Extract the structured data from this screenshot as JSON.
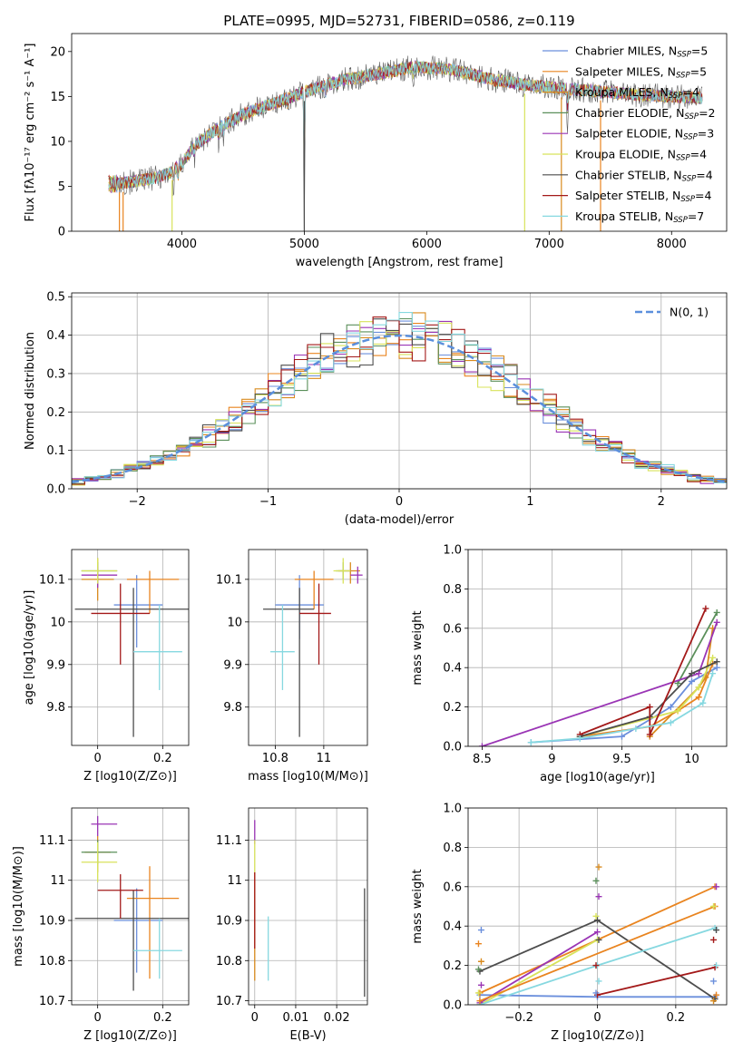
{
  "figure_title": "PLATE=0995, MJD=52731, FIBERID=0586, z=0.119",
  "colors": {
    "Chabrier MILES": "#6b8fdc",
    "Salpeter MILES": "#e9841f",
    "Kroupa MILES": "#d98b1e",
    "Chabrier ELODIE": "#5a8f5a",
    "Salpeter ELODIE": "#9a35b5",
    "Kroupa ELODIE": "#d8e35b",
    "Chabrier STELIB": "#4d4d4d",
    "Salpeter STELIB": "#a31919",
    "Kroupa STELIB": "#86d8e0",
    "gauss": "#5b8fdc"
  },
  "chart_data": [
    {
      "id": "spectrum",
      "type": "line",
      "title": "PLATE=0995, MJD=52731, FIBERID=0586, z=0.119",
      "xlabel": "wavelength [Angstrom, rest frame]",
      "ylabel": "Flux [fλ10⁻¹⁷ erg cm⁻² s⁻¹ A⁻¹]",
      "xlim": [
        3100,
        8450
      ],
      "ylim": [
        0,
        22
      ],
      "xticks": [
        4000,
        5000,
        6000,
        7000,
        8000
      ],
      "yticks": [
        0,
        5,
        10,
        15,
        20
      ],
      "grid": false,
      "legend_position": "right",
      "legend": [
        {
          "prefix": "Chabrier MILES, N",
          "n": "5"
        },
        {
          "prefix": "Salpeter MILES, N",
          "n": "5"
        },
        {
          "prefix": "Kroupa MILES, N",
          "n": "4"
        },
        {
          "prefix": "Chabrier ELODIE, N",
          "n": "2"
        },
        {
          "prefix": "Salpeter ELODIE, N",
          "n": "3"
        },
        {
          "prefix": "Kroupa ELODIE, N",
          "n": "4"
        },
        {
          "prefix": "Chabrier STELIB, N",
          "n": "4"
        },
        {
          "prefix": "Salpeter STELIB, N",
          "n": "4"
        },
        {
          "prefix": "Kroupa STELIB, N",
          "n": "7"
        }
      ],
      "legend_sub": "SSP",
      "continuum": {
        "x": [
          3400,
          3600,
          3800,
          3900,
          4000,
          4100,
          4300,
          4500,
          4800,
          5000,
          5300,
          5600,
          5900,
          6200,
          6500,
          6800,
          7100,
          7400,
          7700,
          8000,
          8250
        ],
        "y": [
          5.2,
          5.5,
          6.0,
          6.5,
          7.5,
          9.5,
          11.5,
          13.0,
          14.5,
          15.5,
          16.8,
          17.5,
          18.3,
          18.0,
          17.0,
          16.3,
          15.9,
          15.6,
          15.2,
          15.0,
          14.8
        ]
      },
      "absorption_lines": [
        {
          "x": 3934,
          "depth": 3.0
        },
        {
          "x": 3969,
          "depth": 2.5
        },
        {
          "x": 4102,
          "depth": 2.0
        },
        {
          "x": 4300,
          "depth": 2.0
        },
        {
          "x": 4341,
          "depth": 1.5
        },
        {
          "x": 4861,
          "depth": 1.5
        },
        {
          "x": 5000,
          "depth": 15.5
        },
        {
          "x": 5175,
          "depth": 2.0
        },
        {
          "x": 5270,
          "depth": 1.0
        },
        {
          "x": 5892,
          "depth": 2.5
        },
        {
          "x": 6563,
          "depth": 1.5
        },
        {
          "x": 7150,
          "depth": 5.0
        }
      ]
    },
    {
      "id": "residuals",
      "type": "bar",
      "xlabel": "(data-model)/error",
      "ylabel": "Normed distribution",
      "xlim": [
        -2.5,
        2.5
      ],
      "ylim": [
        0,
        0.51
      ],
      "xticks": [
        -2,
        -1,
        0,
        1,
        2
      ],
      "yticks": [
        0.0,
        0.1,
        0.2,
        0.3,
        0.4,
        0.5
      ],
      "grid": true,
      "legend_position": "top-right",
      "gauss_label": "N(0, 1)",
      "bin_width": 0.1,
      "noise_seeds": [
        3,
        7,
        11,
        13,
        17,
        19,
        23,
        29,
        31
      ]
    },
    {
      "id": "age_vs_Z",
      "type": "scatter",
      "xlabel": "Z [log10(Z/Z⊙)]",
      "ylabel": "age  [log10(age/yr)]",
      "xlim": [
        -0.08,
        0.28
      ],
      "ylim": [
        9.71,
        10.17
      ],
      "xticks": [
        0.0,
        0.2
      ],
      "yticks": [
        9.8,
        9.9,
        10.0,
        10.1
      ],
      "grid": true,
      "points": [
        {
          "model": "Chabrier MILES",
          "x": 0.12,
          "y": 10.04,
          "xerr": [
            0.07,
            0.08
          ],
          "yerr": [
            0.1,
            0.07
          ]
        },
        {
          "model": "Salpeter MILES",
          "x": 0.16,
          "y": 10.1,
          "xerr": [
            0.07,
            0.09
          ],
          "yerr": [
            0.08,
            0.02
          ]
        },
        {
          "model": "Kroupa MILES",
          "x": 0.0,
          "y": 10.1,
          "xerr": [
            0.05,
            0.05
          ],
          "yerr": [
            0.05,
            0.05
          ]
        },
        {
          "model": "Chabrier ELODIE",
          "x": 0.0,
          "y": 10.12,
          "xerr": [
            0.05,
            0.06
          ],
          "yerr": [
            0.03,
            0.02
          ]
        },
        {
          "model": "Salpeter ELODIE",
          "x": 0.0,
          "y": 10.11,
          "xerr": [
            0.05,
            0.06
          ],
          "yerr": [
            0.03,
            0.02
          ]
        },
        {
          "model": "Kroupa ELODIE",
          "x": 0.0,
          "y": 10.12,
          "xerr": [
            0.05,
            0.06
          ],
          "yerr": [
            0.03,
            0.03
          ]
        },
        {
          "model": "Chabrier STELIB",
          "x": 0.11,
          "y": 10.03,
          "xerr": [
            0.18,
            0.17
          ],
          "yerr": [
            0.3,
            0.05
          ]
        },
        {
          "model": "Salpeter STELIB",
          "x": 0.07,
          "y": 10.02,
          "xerr": [
            0.09,
            0.09
          ],
          "yerr": [
            0.12,
            0.07
          ]
        },
        {
          "model": "Kroupa STELIB",
          "x": 0.19,
          "y": 9.93,
          "xerr": [
            0.08,
            0.07
          ],
          "yerr": [
            0.09,
            0.11
          ]
        }
      ]
    },
    {
      "id": "age_vs_mass",
      "type": "scatter",
      "xlabel": "mass [log10(M/M⊙)]",
      "ylabel": "",
      "xlim": [
        10.69,
        11.18
      ],
      "ylim": [
        9.71,
        10.17
      ],
      "xticks": [
        10.8,
        11.0
      ],
      "yticks": [
        9.8,
        9.9,
        10.0,
        10.1
      ],
      "grid": true,
      "points": [
        {
          "model": "Chabrier MILES",
          "x": 10.9,
          "y": 10.04,
          "xerr": [
            0.1,
            0.1
          ],
          "yerr": [
            0.08,
            0.07
          ]
        },
        {
          "model": "Salpeter MILES",
          "x": 10.96,
          "y": 10.1,
          "xerr": [
            0.08,
            0.08
          ],
          "yerr": [
            0.07,
            0.02
          ]
        },
        {
          "model": "Kroupa MILES",
          "x": 11.11,
          "y": 10.12,
          "xerr": [
            0.05,
            0.04
          ],
          "yerr": [
            0.03,
            0.02
          ]
        },
        {
          "model": "Chabrier ELODIE",
          "x": 11.08,
          "y": 10.12,
          "xerr": [
            0.03,
            0.03
          ],
          "yerr": [
            0.02,
            0.02
          ]
        },
        {
          "model": "Salpeter ELODIE",
          "x": 11.14,
          "y": 10.11,
          "xerr": [
            0.03,
            0.02
          ],
          "yerr": [
            0.02,
            0.02
          ]
        },
        {
          "model": "Kroupa ELODIE",
          "x": 11.08,
          "y": 10.12,
          "xerr": [
            0.04,
            0.03
          ],
          "yerr": [
            0.03,
            0.03
          ]
        },
        {
          "model": "Chabrier STELIB",
          "x": 10.9,
          "y": 10.03,
          "xerr": [
            0.15,
            0.06
          ],
          "yerr": [
            0.3,
            0.05
          ]
        },
        {
          "model": "Salpeter STELIB",
          "x": 10.98,
          "y": 10.02,
          "xerr": [
            0.08,
            0.05
          ],
          "yerr": [
            0.12,
            0.07
          ]
        },
        {
          "model": "Kroupa STELIB",
          "x": 10.83,
          "y": 9.93,
          "xerr": [
            0.05,
            0.05
          ],
          "yerr": [
            0.09,
            0.11
          ]
        }
      ]
    },
    {
      "id": "weight_vs_age",
      "type": "line",
      "xlabel": "age  [log10(age/yr)]",
      "ylabel": "mass weight",
      "xlim": [
        8.4,
        10.25
      ],
      "ylim": [
        0,
        1
      ],
      "xticks": [
        8.5,
        9.0,
        9.5,
        10.0
      ],
      "yticks": [
        0.0,
        0.2,
        0.4,
        0.6,
        0.8,
        1.0
      ],
      "grid": true,
      "series": [
        {
          "model": "Chabrier MILES",
          "x": [
            8.85,
            9.5,
            9.85,
            10.0,
            10.18
          ],
          "y": [
            0.02,
            0.05,
            0.2,
            0.33,
            0.4
          ]
        },
        {
          "model": "Salpeter MILES",
          "x": [
            9.2,
            9.7,
            9.9,
            10.05,
            10.15
          ],
          "y": [
            0.05,
            0.1,
            0.18,
            0.25,
            0.42
          ]
        },
        {
          "model": "Kroupa MILES",
          "x": [
            9.7,
            10.05,
            10.1,
            10.15
          ],
          "y": [
            0.05,
            0.3,
            0.35,
            0.6
          ]
        },
        {
          "model": "Chabrier ELODIE",
          "x": [
            9.9,
            10.18
          ],
          "y": [
            0.32,
            0.68
          ]
        },
        {
          "model": "Salpeter ELODIE",
          "x": [
            8.5,
            10.05,
            10.18
          ],
          "y": [
            0.0,
            0.37,
            0.63
          ]
        },
        {
          "model": "Kroupa ELODIE",
          "x": [
            9.2,
            9.9,
            10.05,
            10.15
          ],
          "y": [
            0.05,
            0.18,
            0.3,
            0.45
          ]
        },
        {
          "model": "Chabrier STELIB",
          "x": [
            9.2,
            9.7,
            10.0,
            10.18
          ],
          "y": [
            0.05,
            0.15,
            0.37,
            0.43
          ]
        },
        {
          "model": "Salpeter STELIB",
          "x": [
            9.2,
            9.7,
            9.7,
            10.1
          ],
          "y": [
            0.06,
            0.2,
            0.06,
            0.7
          ]
        },
        {
          "model": "Kroupa STELIB",
          "x": [
            8.85,
            9.2,
            9.6,
            9.85,
            10.08,
            10.15
          ],
          "y": [
            0.02,
            0.04,
            0.09,
            0.12,
            0.22,
            0.37
          ]
        }
      ]
    },
    {
      "id": "mass_vs_Z",
      "type": "scatter",
      "xlabel": "Z [log10(Z/Z⊙)]",
      "ylabel": "mass [log10(M/M⊙)]",
      "xlim": [
        -0.08,
        0.28
      ],
      "ylim": [
        10.69,
        11.18
      ],
      "xticks": [
        0.0,
        0.2
      ],
      "yticks": [
        10.7,
        10.8,
        10.9,
        11.0,
        11.1
      ],
      "grid": true,
      "points": [
        {
          "model": "Chabrier MILES",
          "x": 0.12,
          "y": 10.9,
          "xerr": [
            0.07,
            0.08
          ],
          "yerr": [
            0.13,
            0.08
          ]
        },
        {
          "model": "Salpeter MILES",
          "x": 0.16,
          "y": 10.955,
          "xerr": [
            0.07,
            0.09
          ],
          "yerr": [
            0.2,
            0.08
          ]
        },
        {
          "model": "Kroupa MILES",
          "x": 0.0,
          "y": 11.07,
          "xerr": [
            0.04,
            0.04
          ],
          "yerr": [
            0.05,
            0.04
          ]
        },
        {
          "model": "Chabrier ELODIE",
          "x": 0.0,
          "y": 11.07,
          "xerr": [
            0.05,
            0.06
          ],
          "yerr": [
            0.03,
            0.03
          ]
        },
        {
          "model": "Salpeter ELODIE",
          "x": 0.0,
          "y": 11.14,
          "xerr": [
            0.02,
            0.06
          ],
          "yerr": [
            0.03,
            0.02
          ]
        },
        {
          "model": "Kroupa ELODIE",
          "x": 0.0,
          "y": 11.045,
          "xerr": [
            0.05,
            0.06
          ],
          "yerr": [
            0.05,
            0.05
          ]
        },
        {
          "model": "Chabrier STELIB",
          "x": 0.11,
          "y": 10.905,
          "xerr": [
            0.18,
            0.17
          ],
          "yerr": [
            0.18,
            0.07
          ]
        },
        {
          "model": "Salpeter STELIB",
          "x": 0.07,
          "y": 10.975,
          "xerr": [
            0.07,
            0.07
          ],
          "yerr": [
            0.07,
            0.04
          ]
        },
        {
          "model": "Kroupa STELIB",
          "x": 0.19,
          "y": 10.825,
          "xerr": [
            0.08,
            0.07
          ],
          "yerr": [
            0.07,
            0.08
          ]
        }
      ]
    },
    {
      "id": "mass_vs_EBV",
      "type": "scatter",
      "xlabel": "E(B-V)",
      "ylabel": "",
      "xlim": [
        -0.0015,
        0.0275
      ],
      "ylim": [
        10.69,
        11.18
      ],
      "xticks": [
        0.0,
        0.01,
        0.02
      ],
      "yticks": [
        10.7,
        10.8,
        10.9,
        11.0,
        11.1
      ],
      "grid": true,
      "points": [
        {
          "model": "Kroupa MILES",
          "x": 0.0,
          "y": 10.94,
          "xerr": [
            0,
            0
          ],
          "yerr": [
            0.19,
            0.08
          ]
        },
        {
          "model": "Salpeter STELIB",
          "x": 0.0,
          "y": 10.98,
          "xerr": [
            0,
            0
          ],
          "yerr": [
            0.15,
            0.04
          ]
        },
        {
          "model": "Salpeter ELODIE",
          "x": 0.0,
          "y": 11.12,
          "xerr": [
            0,
            0
          ],
          "yerr": [
            0.03,
            0.03
          ]
        },
        {
          "model": "Kroupa ELODIE",
          "x": 0.0,
          "y": 11.06,
          "xerr": [
            0,
            0
          ],
          "yerr": [
            0.04,
            0.04
          ]
        },
        {
          "model": "Kroupa STELIB",
          "x": 0.0033,
          "y": 10.83,
          "xerr": [
            0,
            0
          ],
          "yerr": [
            0.08,
            0.08
          ]
        },
        {
          "model": "Chabrier STELIB",
          "x": 0.0268,
          "y": 10.86,
          "xerr": [
            0,
            0
          ],
          "yerr": [
            0.15,
            0.12
          ]
        }
      ]
    },
    {
      "id": "weight_vs_Z",
      "type": "line",
      "xlabel": "Z [log10(Z/Z⊙)]",
      "ylabel": "mass weight",
      "xlim": [
        -0.33,
        0.33
      ],
      "ylim": [
        0,
        1
      ],
      "xticks": [
        -0.2,
        0.0,
        0.2
      ],
      "yticks": [
        0.0,
        0.2,
        0.4,
        0.6,
        0.8,
        1.0
      ],
      "grid": true,
      "series": [
        {
          "model": "Chabrier MILES",
          "x": [
            -0.3,
            0.0,
            0.3
          ],
          "y": [
            0.05,
            0.04,
            0.04
          ]
        },
        {
          "model": "Salpeter MILES",
          "x": [
            -0.3,
            0.3
          ],
          "y": [
            0.06,
            0.6
          ]
        },
        {
          "model": "Kroupa ELODIE",
          "x": [
            -0.3,
            0.0
          ],
          "y": [
            0.0,
            0.33
          ]
        },
        {
          "model": "Salpeter ELODIE",
          "x": [
            -0.3,
            0.0
          ],
          "y": [
            0.01,
            0.37
          ]
        },
        {
          "model": "Chabrier STELIB",
          "x": [
            -0.3,
            0.0,
            0.3
          ],
          "y": [
            0.17,
            0.43,
            0.03
          ]
        },
        {
          "model": "Kroupa STELIB",
          "x": [
            -0.3,
            0.0,
            0.3
          ],
          "y": [
            0.0,
            0.2,
            0.39
          ]
        },
        {
          "model": "Salpeter STELIB",
          "x": [
            0.0,
            0.3
          ],
          "y": [
            0.05,
            0.19
          ]
        },
        {
          "model": "Salpeter MILES",
          "x": [
            -0.3,
            0.3
          ],
          "y": [
            0.02,
            0.5
          ],
          "alt": true
        }
      ]
    }
  ]
}
